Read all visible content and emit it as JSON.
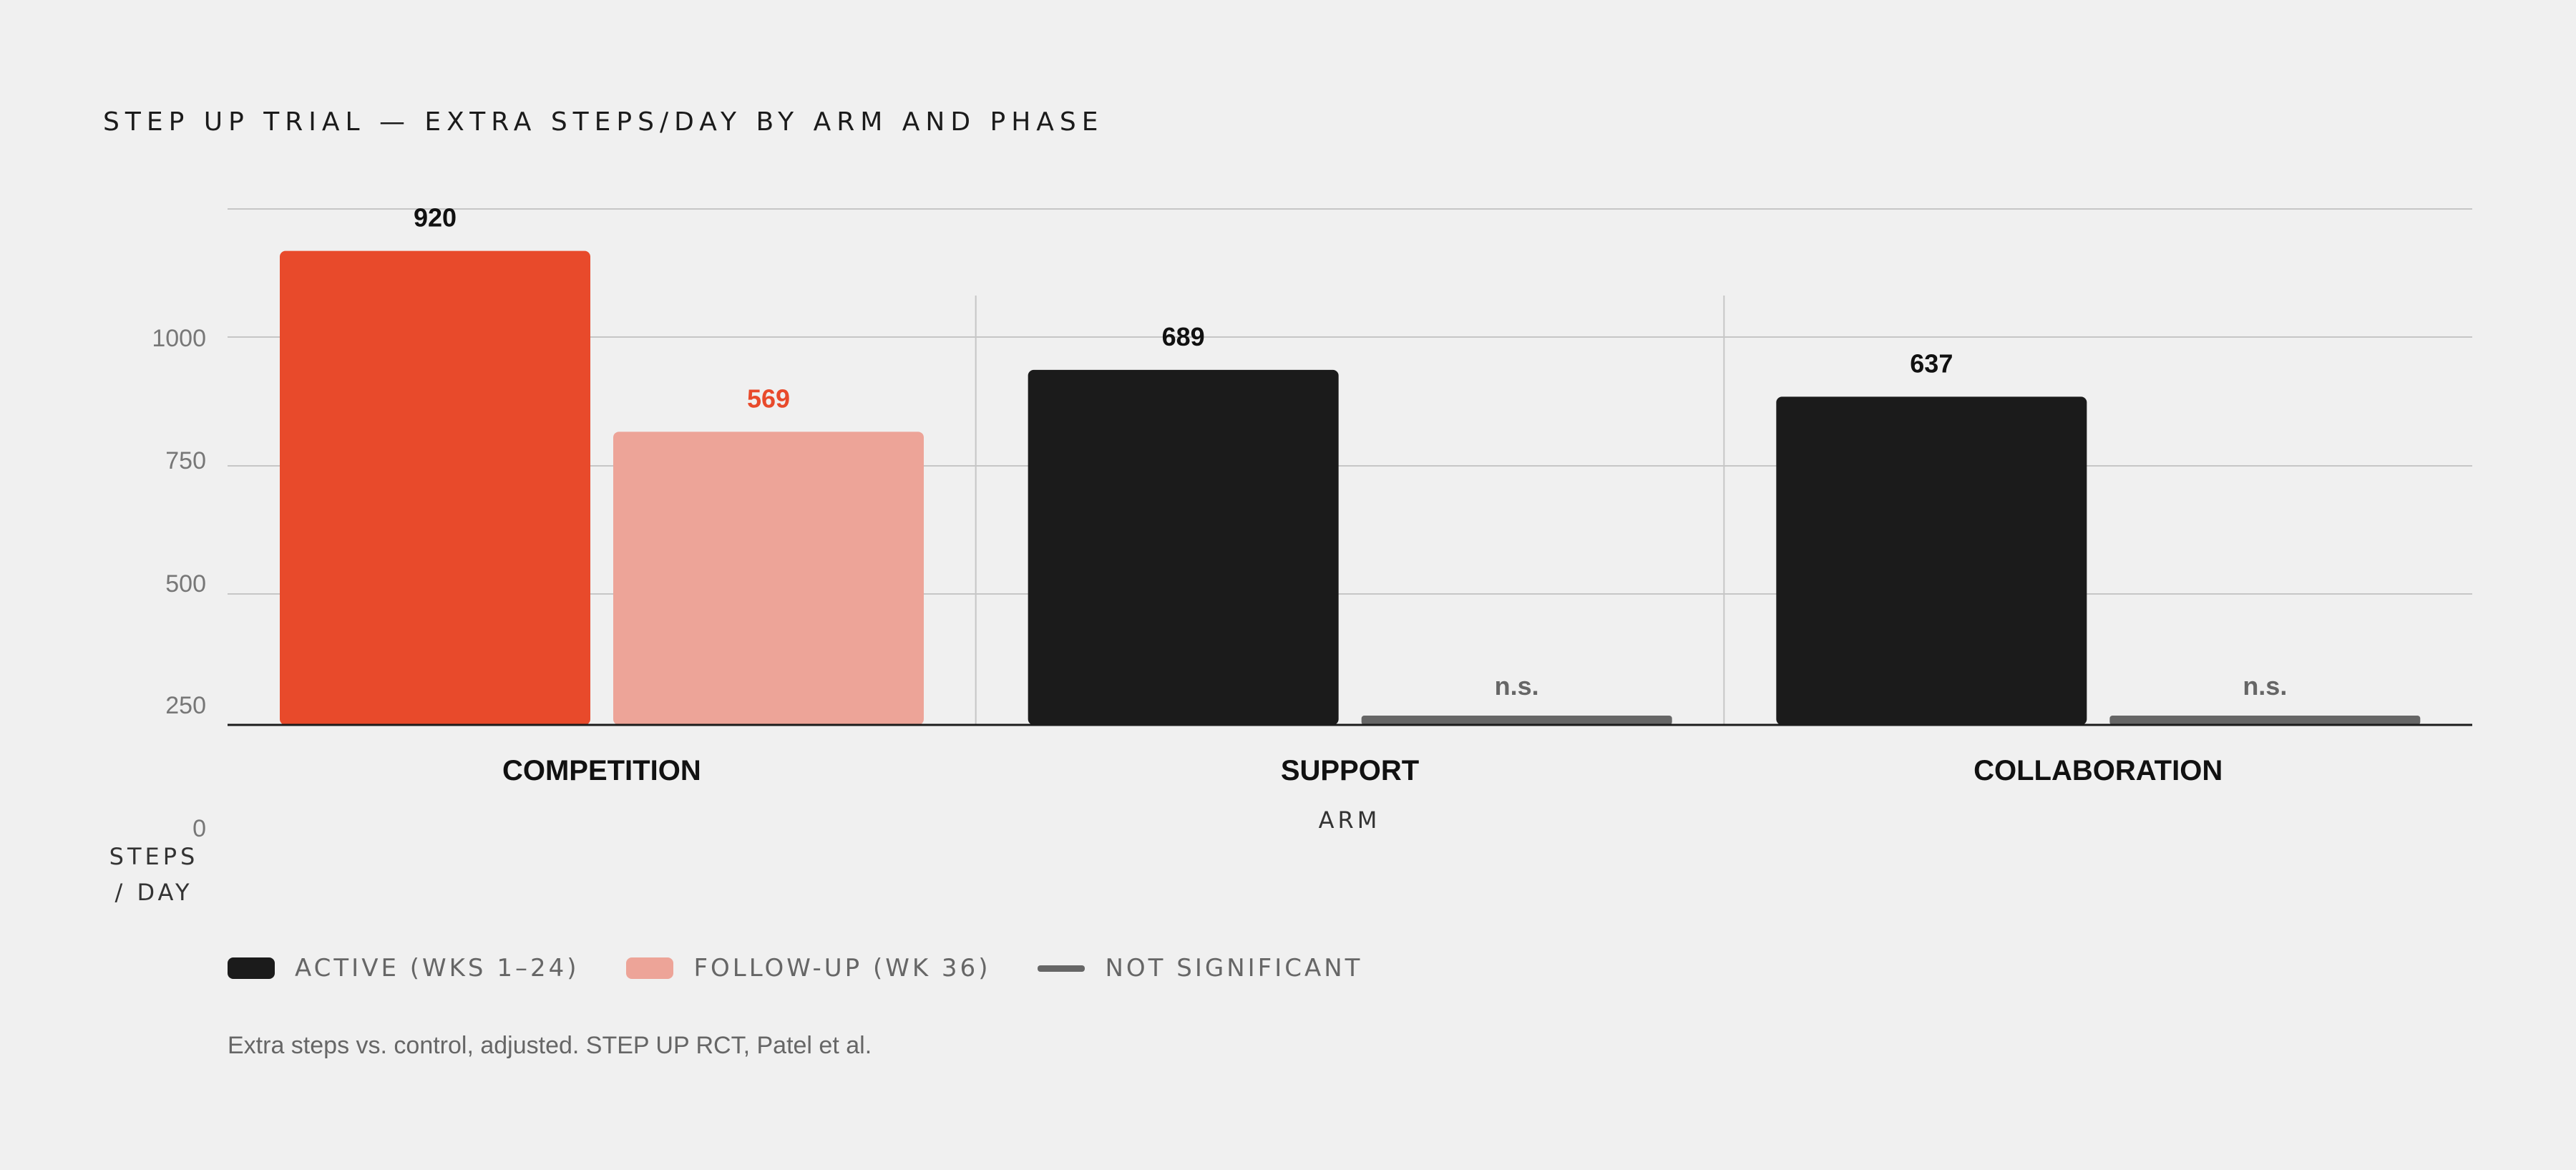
{
  "chart_data": {
    "type": "bar",
    "title": "STEP UP TRIAL — EXTRA STEPS/DAY BY ARM AND PHASE",
    "xlabel": "ARM",
    "ylabel": "STEPS / DAY",
    "categories": [
      "COMPETITION",
      "SUPPORT",
      "COLLABORATION"
    ],
    "series": [
      {
        "name": "ACTIVE (WKS 1–24)",
        "values": [
          920,
          689,
          637
        ],
        "labels": [
          "920",
          "689",
          "637"
        ]
      },
      {
        "name": "FOLLOW-UP (WK 36)",
        "values": [
          569,
          15,
          15
        ],
        "labels": [
          "569",
          "n.s.",
          "n.s."
        ],
        "significant": [
          true,
          false,
          false
        ]
      }
    ],
    "y_ticks": [
      "0",
      "250",
      "500",
      "750",
      "1000"
    ],
    "ylim": [
      0,
      1000
    ],
    "grid": true,
    "legend_position": "bottom-left",
    "colors": {
      "competition_active": "#e84a2b",
      "competition_followup": "#eda498",
      "active": "#1b1b1b",
      "followup": "#eda498",
      "not_significant": "#666666",
      "value_highlight": "#e84a2b",
      "background": "#f0f0f0",
      "grid": "#c6c6c6",
      "axis": "#1b1b1b"
    }
  },
  "legend": {
    "active": "ACTIVE (WKS 1–24)",
    "followup": "FOLLOW-UP (WK 36)",
    "ns": "NOT SIGNIFICANT"
  },
  "footer": {
    "source": "Extra steps vs. control, adjusted. STEP UP RCT, Patel et al."
  }
}
